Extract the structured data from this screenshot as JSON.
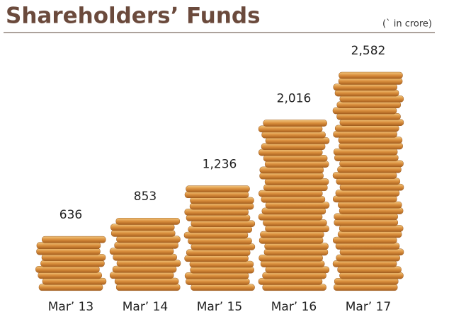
{
  "chart_data": {
    "type": "bar",
    "title": "Shareholders’ Funds",
    "subtitle": "(` in crore)",
    "categories": [
      "Mar’ 13",
      "Mar’ 14",
      "Mar’ 15",
      "Mar’ 16",
      "Mar’ 17"
    ],
    "values": [
      636,
      853,
      1236,
      2016,
      2582
    ],
    "value_labels": [
      "636",
      "853",
      "1,236",
      "2,016",
      "2,582"
    ],
    "color": "#d98e3c"
  }
}
